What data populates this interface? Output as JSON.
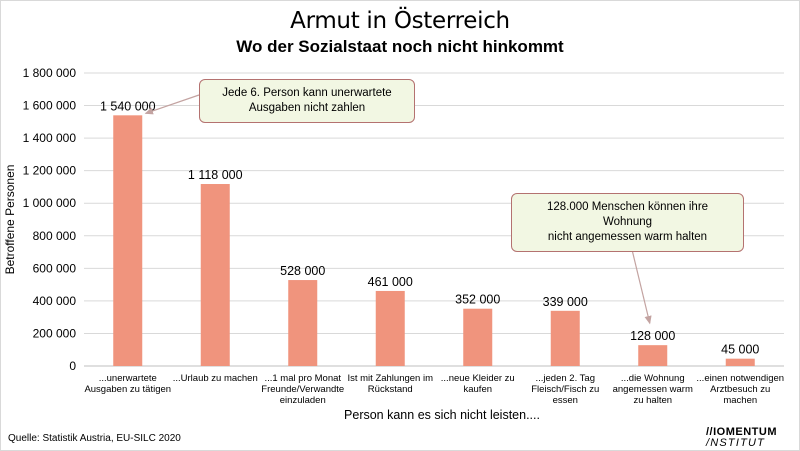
{
  "chart_data": {
    "type": "bar",
    "title": "Armut in Österreich",
    "subtitle": "Wo der Sozialstaat noch nicht hinkommt",
    "xlabel": "Person kann es sich nicht leisten....",
    "ylabel": "Betroffene Personen",
    "ylim": [
      0,
      1800000
    ],
    "yticks": [
      "0",
      "200 000",
      "400 000",
      "600 000",
      "800 000",
      "1 000 000",
      "1 200 000",
      "1 400 000",
      "1 600 000",
      "1 800 000"
    ],
    "categories": [
      [
        "...unerwartete",
        "Ausgaben zu tätigen"
      ],
      [
        "...Urlaub zu machen"
      ],
      [
        "...1 mal pro Monat",
        "Freunde/Verwandte",
        "einzuladen"
      ],
      [
        "Ist mit Zahlungen im",
        "Rückstand"
      ],
      [
        "...neue Kleider zu",
        "kaufen"
      ],
      [
        "...jeden 2. Tag",
        "Fleisch/Fisch zu",
        "essen"
      ],
      [
        "...die Wohnung",
        "angemessen warm",
        "zu halten"
      ],
      [
        "...einen notwendigen",
        "Arztbesuch zu",
        "machen"
      ]
    ],
    "values": [
      1540000,
      1118000,
      528000,
      461000,
      352000,
      339000,
      128000,
      45000
    ],
    "value_labels": [
      "1 540 000",
      "1 118 000",
      "528 000",
      "461 000",
      "352 000",
      "339 000",
      "128 000",
      "45 000"
    ],
    "bar_color": "#f0947d",
    "grid": true,
    "annotations": [
      {
        "lines": [
          "Jede 6. Person kann unerwartete",
          "Ausgaben nicht zahlen"
        ],
        "target_index": 0
      },
      {
        "lines": [
          "128.000 Menschen können ihre Wohnung",
          "nicht angemessen warm halten"
        ],
        "target_index": 6
      }
    ]
  },
  "footer": {
    "source": "Quelle: Statistik Austria, EU-SILC 2020",
    "logo_line1": "//IOMENTUM",
    "logo_line2": "/NSTITUT"
  }
}
